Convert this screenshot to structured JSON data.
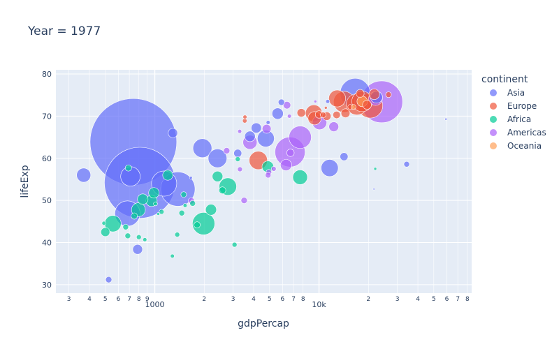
{
  "chart_data": {
    "type": "scatter",
    "title": "Year = 1977",
    "xlabel": "gdpPercap",
    "ylabel": "lifeExp",
    "xscale": "log",
    "xlim": [
      250,
      85000
    ],
    "ylim": [
      28,
      81
    ],
    "xticks_major": [
      {
        "value": 1000,
        "label": "1000"
      },
      {
        "value": 10000,
        "label": "10k"
      }
    ],
    "xticks_minor": [
      {
        "value": 300,
        "label": "3"
      },
      {
        "value": 400,
        "label": "4"
      },
      {
        "value": 500,
        "label": "5"
      },
      {
        "value": 600,
        "label": "6"
      },
      {
        "value": 700,
        "label": "7"
      },
      {
        "value": 800,
        "label": "8"
      },
      {
        "value": 900,
        "label": "9"
      },
      {
        "value": 2000,
        "label": "2"
      },
      {
        "value": 3000,
        "label": "3"
      },
      {
        "value": 4000,
        "label": "4"
      },
      {
        "value": 5000,
        "label": "5"
      },
      {
        "value": 6000,
        "label": "6"
      },
      {
        "value": 7000,
        "label": "7"
      },
      {
        "value": 8000,
        "label": "8"
      },
      {
        "value": 20000,
        "label": "2"
      },
      {
        "value": 30000,
        "label": "3"
      },
      {
        "value": 40000,
        "label": "4"
      },
      {
        "value": 50000,
        "label": "5"
      },
      {
        "value": 60000,
        "label": "6"
      },
      {
        "value": 70000,
        "label": "7"
      },
      {
        "value": 80000,
        "label": "8"
      }
    ],
    "yticks": [
      {
        "value": 30,
        "label": "30"
      },
      {
        "value": 40,
        "label": "40"
      },
      {
        "value": 50,
        "label": "50"
      },
      {
        "value": 60,
        "label": "60"
      },
      {
        "value": 70,
        "label": "70"
      },
      {
        "value": 80,
        "label": "80"
      }
    ],
    "grid": true,
    "legend": {
      "title": "continent",
      "position": "right"
    },
    "size_by": "pop",
    "series": [
      {
        "name": "Asia",
        "color": "#636efa",
        "points": [
          {
            "x": 741,
            "y": 63.9,
            "pop": 943.5
          },
          {
            "x": 812,
            "y": 54.2,
            "pop": 634
          },
          {
            "x": 1382,
            "y": 52.7,
            "pop": 148
          },
          {
            "x": 1140,
            "y": 54.0,
            "pop": 80
          },
          {
            "x": 711,
            "y": 55.7,
            "pop": 48
          },
          {
            "x": 682,
            "y": 46.9,
            "pop": 80
          },
          {
            "x": 16610,
            "y": 75.4,
            "pop": 114
          },
          {
            "x": 1949,
            "y": 62.4,
            "pop": 45
          },
          {
            "x": 2410,
            "y": 60.0,
            "pop": 44
          },
          {
            "x": 4744,
            "y": 64.7,
            "pop": 36
          },
          {
            "x": 11610,
            "y": 57.7,
            "pop": 37
          },
          {
            "x": 369,
            "y": 56.0,
            "pop": 25
          },
          {
            "x": 5600,
            "y": 70.6,
            "pop": 16
          },
          {
            "x": 4150,
            "y": 67.2,
            "pop": 13
          },
          {
            "x": 786,
            "y": 38.4,
            "pop": 12
          },
          {
            "x": 1289,
            "y": 66.0,
            "pop": 11
          },
          {
            "x": 14200,
            "y": 60.4,
            "pop": 8
          },
          {
            "x": 3800,
            "y": 65.2,
            "pop": 14
          },
          {
            "x": 3200,
            "y": 61.2,
            "pop": 8
          },
          {
            "x": 524,
            "y": 31.2,
            "pop": 5
          },
          {
            "x": 34170,
            "y": 58.6,
            "pop": 4
          },
          {
            "x": 22400,
            "y": 74.5,
            "pop": 18
          },
          {
            "x": 5900,
            "y": 73.3,
            "pop": 5
          },
          {
            "x": 11300,
            "y": 73.5,
            "pop": 2
          },
          {
            "x": 4900,
            "y": 68.5,
            "pop": 2
          },
          {
            "x": 1660,
            "y": 55.4,
            "pop": 1
          },
          {
            "x": 59265,
            "y": 69.3,
            "pop": 0.6
          },
          {
            "x": 21600,
            "y": 52.7,
            "pop": 0.4
          }
        ]
      },
      {
        "name": "Europe",
        "color": "#ef553b",
        "points": [
          {
            "x": 20513,
            "y": 72.5,
            "pop": 78
          },
          {
            "x": 14196,
            "y": 73.4,
            "pop": 56
          },
          {
            "x": 18292,
            "y": 73.5,
            "pop": 53
          },
          {
            "x": 17000,
            "y": 72.8,
            "pop": 56
          },
          {
            "x": 12900,
            "y": 74.2,
            "pop": 36
          },
          {
            "x": 4269,
            "y": 59.5,
            "pop": 42
          },
          {
            "x": 9300,
            "y": 70.7,
            "pop": 35
          },
          {
            "x": 9400,
            "y": 69.5,
            "pop": 22
          },
          {
            "x": 21688,
            "y": 75.2,
            "pop": 14
          },
          {
            "x": 19600,
            "y": 72.7,
            "pop": 10
          },
          {
            "x": 17800,
            "y": 75.4,
            "pop": 8
          },
          {
            "x": 14500,
            "y": 70.7,
            "pop": 10
          },
          {
            "x": 11150,
            "y": 70.0,
            "pop": 9
          },
          {
            "x": 7800,
            "y": 70.8,
            "pop": 9
          },
          {
            "x": 12800,
            "y": 70.3,
            "pop": 7
          },
          {
            "x": 10000,
            "y": 70.4,
            "pop": 7
          },
          {
            "x": 26500,
            "y": 75.1,
            "pop": 4
          },
          {
            "x": 10600,
            "y": 70.3,
            "pop": 4
          },
          {
            "x": 3540,
            "y": 69.8,
            "pop": 2
          },
          {
            "x": 3530,
            "y": 68.9,
            "pop": 2.5
          },
          {
            "x": 15500,
            "y": 72.2,
            "pop": 3
          },
          {
            "x": 11000,
            "y": 72.0,
            "pop": 1
          }
        ]
      },
      {
        "name": "Africa",
        "color": "#00cc96",
        "points": [
          {
            "x": 1982,
            "y": 44.5,
            "pop": 63
          },
          {
            "x": 556,
            "y": 44.5,
            "pop": 34
          },
          {
            "x": 2785,
            "y": 53.3,
            "pop": 38
          },
          {
            "x": 795,
            "y": 47.8,
            "pop": 24
          },
          {
            "x": 7670,
            "y": 55.5,
            "pop": 27
          },
          {
            "x": 955,
            "y": 49.9,
            "pop": 16
          },
          {
            "x": 2200,
            "y": 47.8,
            "pop": 15
          },
          {
            "x": 845,
            "y": 50.3,
            "pop": 14
          },
          {
            "x": 4880,
            "y": 58.0,
            "pop": 17
          },
          {
            "x": 988,
            "y": 51.8,
            "pop": 14
          },
          {
            "x": 1200,
            "y": 56.0,
            "pop": 13
          },
          {
            "x": 500,
            "y": 42.5,
            "pop": 10
          },
          {
            "x": 2410,
            "y": 55.7,
            "pop": 14
          },
          {
            "x": 691,
            "y": 57.7,
            "pop": 5
          },
          {
            "x": 750,
            "y": 46.3,
            "pop": 5
          },
          {
            "x": 665,
            "y": 43.7,
            "pop": 4
          },
          {
            "x": 685,
            "y": 41.6,
            "pop": 4
          },
          {
            "x": 1500,
            "y": 51.4,
            "pop": 4
          },
          {
            "x": 1700,
            "y": 49.3,
            "pop": 4
          },
          {
            "x": 1460,
            "y": 47.0,
            "pop": 4
          },
          {
            "x": 1100,
            "y": 47.3,
            "pop": 3
          },
          {
            "x": 1810,
            "y": 44.2,
            "pop": 5
          },
          {
            "x": 3060,
            "y": 39.5,
            "pop": 3
          },
          {
            "x": 800,
            "y": 41.3,
            "pop": 3
          },
          {
            "x": 2580,
            "y": 52.4,
            "pop": 6
          },
          {
            "x": 1370,
            "y": 41.9,
            "pop": 3
          },
          {
            "x": 3200,
            "y": 59.8,
            "pop": 3
          },
          {
            "x": 1280,
            "y": 36.8,
            "pop": 2
          },
          {
            "x": 1530,
            "y": 48.8,
            "pop": 2
          },
          {
            "x": 870,
            "y": 40.7,
            "pop": 2
          },
          {
            "x": 1010,
            "y": 49.2,
            "pop": 2
          },
          {
            "x": 490,
            "y": 44.6,
            "pop": 2
          },
          {
            "x": 22000,
            "y": 57.5,
            "pop": 1
          },
          {
            "x": 1050,
            "y": 46.8,
            "pop": 1
          }
        ]
      },
      {
        "name": "Americas",
        "color": "#ab63fa",
        "points": [
          {
            "x": 24073,
            "y": 73.4,
            "pop": 220
          },
          {
            "x": 6660,
            "y": 61.5,
            "pop": 114
          },
          {
            "x": 7674,
            "y": 65.0,
            "pop": 63
          },
          {
            "x": 10079,
            "y": 68.5,
            "pop": 26
          },
          {
            "x": 3800,
            "y": 63.8,
            "pop": 25
          },
          {
            "x": 22091,
            "y": 74.2,
            "pop": 24
          },
          {
            "x": 6300,
            "y": 58.4,
            "pop": 16
          },
          {
            "x": 12300,
            "y": 67.5,
            "pop": 12
          },
          {
            "x": 4800,
            "y": 67.0,
            "pop": 10
          },
          {
            "x": 6700,
            "y": 61.3,
            "pop": 7
          },
          {
            "x": 6380,
            "y": 72.6,
            "pop": 7
          },
          {
            "x": 3500,
            "y": 50.0,
            "pop": 5
          },
          {
            "x": 2740,
            "y": 61.8,
            "pop": 5
          },
          {
            "x": 4950,
            "y": 56.7,
            "pop": 4
          },
          {
            "x": 4900,
            "y": 56.0,
            "pop": 4
          },
          {
            "x": 3300,
            "y": 57.4,
            "pop": 3
          },
          {
            "x": 1670,
            "y": 49.9,
            "pop": 5
          },
          {
            "x": 5300,
            "y": 57.5,
            "pop": 3
          },
          {
            "x": 6600,
            "y": 70.0,
            "pop": 2
          },
          {
            "x": 3290,
            "y": 66.4,
            "pop": 2
          },
          {
            "x": 9500,
            "y": 73.5,
            "pop": 1
          }
        ]
      },
      {
        "name": "Oceania",
        "color": "#ffa15a",
        "points": [
          {
            "x": 18334,
            "y": 73.5,
            "pop": 14
          },
          {
            "x": 16233,
            "y": 72.2,
            "pop": 3
          }
        ]
      }
    ]
  }
}
